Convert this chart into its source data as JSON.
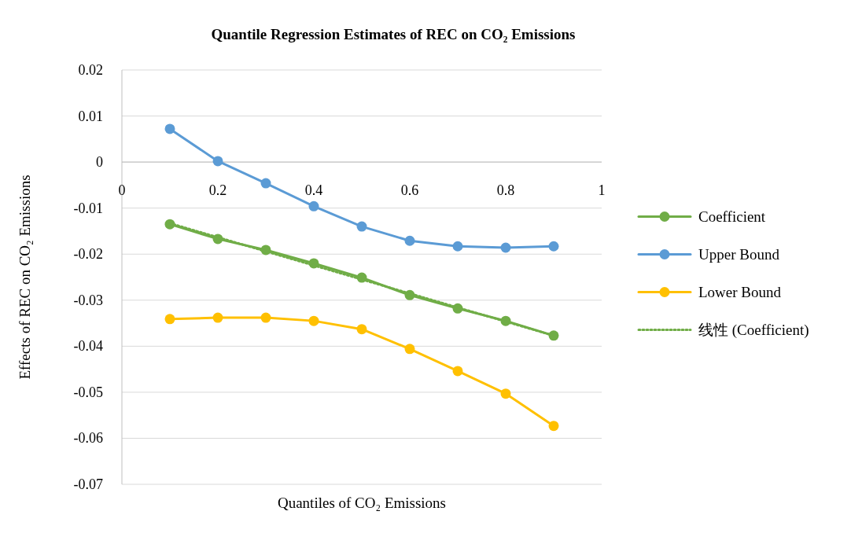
{
  "chart_data": {
    "type": "line",
    "title": "Quantile Regression Estimates of REC on CO₂ Emissions",
    "xlabel": "Quantiles of CO₂ Emissions",
    "ylabel": "Effects of REC on CO₂ Emissions",
    "x": [
      0.1,
      0.2,
      0.3,
      0.4,
      0.5,
      0.6,
      0.7,
      0.8,
      0.9
    ],
    "series": [
      {
        "name": "Coefficient",
        "color": "#70ad47",
        "values": [
          -0.0135,
          -0.0167,
          -0.0191,
          -0.022,
          -0.0251,
          -0.0289,
          -0.0318,
          -0.0345,
          -0.0377
        ]
      },
      {
        "name": "Upper Bound",
        "color": "#5b9bd5",
        "values": [
          0.0072,
          0.0002,
          -0.0046,
          -0.0096,
          -0.014,
          -0.0171,
          -0.0183,
          -0.0186,
          -0.0183
        ]
      },
      {
        "name": "Lower Bound",
        "color": "#ffc000",
        "values": [
          -0.0341,
          -0.0338,
          -0.0338,
          -0.0345,
          -0.0363,
          -0.0406,
          -0.0454,
          -0.0503,
          -0.0573
        ]
      },
      {
        "name": "线性 (Coefficient)",
        "color": "#70ad47",
        "type": "line",
        "marker": "none",
        "line_style": "dotted",
        "x": [
          0.1,
          0.9
        ],
        "values": [
          -0.0133,
          -0.0377
        ]
      }
    ],
    "xlim": [
      0,
      1
    ],
    "xticks": [
      0,
      0.2,
      0.4,
      0.6,
      0.8,
      1
    ],
    "ylim": [
      -0.07,
      0.02
    ],
    "yticks": [
      0.02,
      0.01,
      0,
      -0.01,
      -0.02,
      -0.03,
      -0.04,
      -0.05,
      -0.06,
      -0.07
    ],
    "grid": "y",
    "legend": "right",
    "marker": "circle",
    "line_style": "solid"
  }
}
